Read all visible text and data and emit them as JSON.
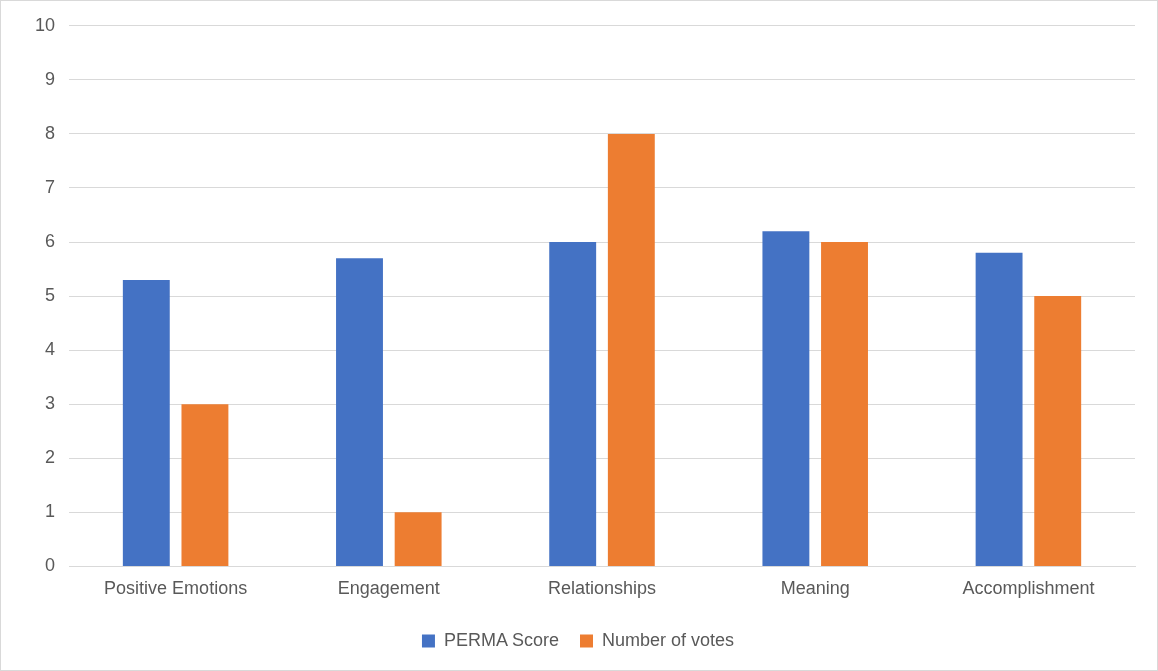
{
  "chart_data": {
    "type": "bar",
    "categories": [
      "Positive Emotions",
      "Engagement",
      "Relationships",
      "Meaning",
      "Accomplishment"
    ],
    "series": [
      {
        "name": "PERMA Score",
        "color": "#4472c4",
        "values": [
          5.3,
          5.7,
          6.0,
          6.2,
          5.8
        ]
      },
      {
        "name": "Number of votes",
        "color": "#ed7d31",
        "values": [
          3,
          1,
          8,
          6,
          5
        ]
      }
    ],
    "ylim": [
      0,
      10
    ],
    "yticks": [
      0,
      1,
      2,
      3,
      4,
      5,
      6,
      7,
      8,
      9,
      10
    ],
    "grid": "y",
    "legend": "bottom"
  }
}
